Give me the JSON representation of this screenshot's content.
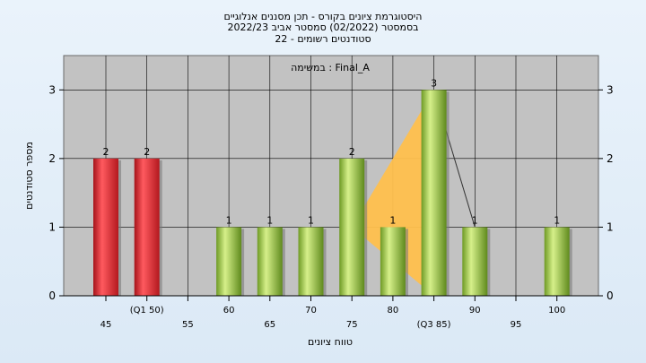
{
  "chart_data": {
    "type": "bar",
    "title_lines": [
      "היסטוגרמת ציונים בקורס - תכן מסננים אנלוגיים",
      "בסמסטר  (02/2022)  סמסטר אביב 2022/23",
      "סטודנטים רשומים - 22"
    ],
    "exam_label": "במשימה : Final_A",
    "xlabel": "טווח ציונים",
    "ylabel": "מספר סטודנטים",
    "ylim": [
      0,
      3.5
    ],
    "yticks": [
      0,
      1,
      2,
      3
    ],
    "x_tick_labels": [
      "45",
      "(Q1 50)",
      "55",
      "60",
      "65",
      "70",
      "75",
      "80",
      "(Q3 85)",
      "90",
      "95",
      "100"
    ],
    "categories": [
      "45",
      "50",
      "55",
      "60",
      "65",
      "70",
      "75",
      "80",
      "85",
      "90",
      "95",
      "100"
    ],
    "values": [
      2,
      2,
      0,
      1,
      1,
      1,
      2,
      1,
      3,
      1,
      0,
      1
    ],
    "bar_colors": [
      "red",
      "red",
      "green",
      "green",
      "green",
      "green",
      "green",
      "green",
      "green",
      "green",
      "green",
      "green"
    ],
    "value_labels": [
      "2",
      "2",
      "",
      "1",
      "1",
      "1",
      "2",
      "1",
      "3",
      "1",
      "",
      "1"
    ],
    "area_band": [
      {
        "x": "50",
        "low": 1.8,
        "high": 1.8
      },
      {
        "x": "60",
        "low": 1,
        "high": 1
      },
      {
        "x": "75",
        "low": 1,
        "high": 1
      },
      {
        "x": "85",
        "low": 0,
        "high": 3
      }
    ],
    "colors": {
      "red": "#d8282e",
      "green": "#8fbf3a",
      "area": "#ffc04d",
      "plot_bg": "#c2c2c2",
      "grid": "#000000"
    },
    "grid": true
  }
}
